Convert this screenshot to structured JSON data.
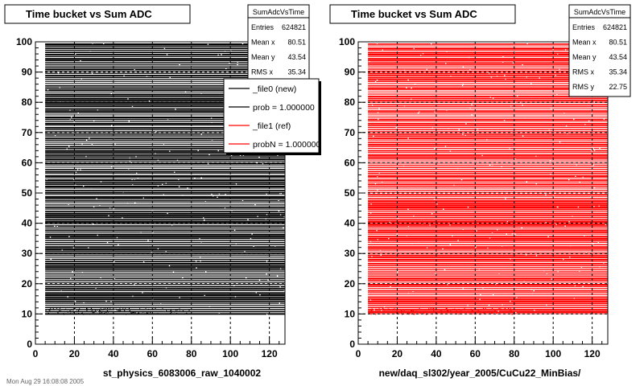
{
  "footer_text": "Mon Aug 29 16:08:08 2005",
  "chart_data": [
    {
      "type": "heatmap",
      "title": "Time bucket vs Sum ADC",
      "xlabel": "st_physics_6083006_raw_1040002",
      "ylabel": "",
      "xlim": [
        0,
        128
      ],
      "ylim": [
        0,
        100
      ],
      "xticks": [
        "0",
        "20",
        "40",
        "60",
        "80",
        "100",
        "120"
      ],
      "yticks": [
        "0",
        "10",
        "20",
        "30",
        "40",
        "50",
        "60",
        "70",
        "80",
        "90",
        "100"
      ],
      "grid": true,
      "fill_x_range": [
        5,
        128
      ],
      "fill_y_range": [
        10,
        100
      ],
      "series": [
        {
          "name": "_file0 (new)",
          "color": "#000000"
        }
      ],
      "stats": {
        "title": "SumAdcVsTime",
        "rows": [
          {
            "label": "Entries",
            "value": "624821"
          },
          {
            "label": "Mean x",
            "value": "80.51"
          },
          {
            "label": "Mean y",
            "value": "43.54"
          },
          {
            "label": "RMS x",
            "value": "35.34"
          }
        ]
      },
      "legend": {
        "placement": "top-right",
        "entries": [
          {
            "label": "_file0 (new)",
            "color": "#000000"
          },
          {
            "label": "prob = 1.000000",
            "color": "#000000"
          },
          {
            "label": "_file1 (ref)",
            "color": "#ff0000"
          },
          {
            "label": "probN = 1.000000",
            "color": "#ff0000"
          }
        ]
      }
    },
    {
      "type": "heatmap",
      "title": "Time bucket vs Sum ADC",
      "xlabel": "new/daq_sl302/year_2005/CuCu22_MinBias/",
      "ylabel": "",
      "xlim": [
        0,
        128
      ],
      "ylim": [
        0,
        100
      ],
      "xticks": [
        "0",
        "20",
        "40",
        "60",
        "80",
        "100",
        "120"
      ],
      "yticks": [
        "0",
        "10",
        "20",
        "30",
        "40",
        "50",
        "60",
        "70",
        "80",
        "90",
        "100"
      ],
      "grid": true,
      "fill_x_range": [
        5,
        128
      ],
      "fill_y_range": [
        10,
        100
      ],
      "series": [
        {
          "name": "_file1 (ref)",
          "color": "#ff0000"
        }
      ],
      "stats": {
        "title": "SumAdcVsTime",
        "rows": [
          {
            "label": "Entries",
            "value": "624821"
          },
          {
            "label": "Mean x",
            "value": "80.51"
          },
          {
            "label": "Mean y",
            "value": "43.54"
          },
          {
            "label": "RMS x",
            "value": "35.34"
          },
          {
            "label": "RMS y",
            "value": "22.75"
          }
        ]
      }
    }
  ]
}
